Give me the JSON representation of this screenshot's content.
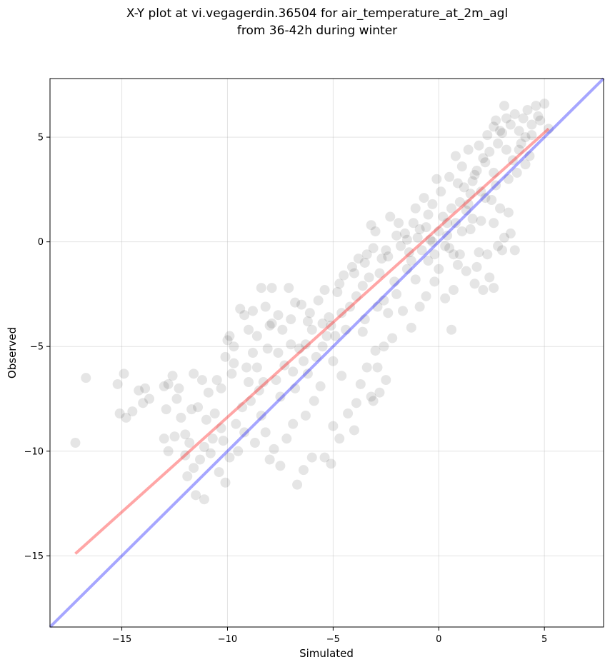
{
  "chart_data": {
    "type": "scatter",
    "title": "X-Y plot at vi.vegagerdin.36504 for air_temperature_at_2m_agl",
    "subtitle": "from 36-42h during winter",
    "xlabel": "Simulated",
    "ylabel": "Observed",
    "xlim": [
      -18.4,
      7.8
    ],
    "ylim": [
      -18.4,
      7.8
    ],
    "xticks": [
      -15,
      -10,
      -5,
      0,
      5
    ],
    "yticks": [
      -15,
      -10,
      -5,
      0,
      5
    ],
    "xtick_labels": [
      "−15",
      "−10",
      "−5",
      "0",
      "5"
    ],
    "ytick_labels": [
      "−15",
      "−10",
      "−5",
      "0",
      "5"
    ],
    "grid": true,
    "point_color": "#000000",
    "point_alpha": 0.1,
    "series": [
      {
        "points": [
          [
            -17.2,
            -9.6
          ],
          [
            -16.7,
            -6.5
          ],
          [
            -15.2,
            -6.8
          ],
          [
            -14.9,
            -6.3
          ],
          [
            -15.1,
            -8.2
          ],
          [
            -14.8,
            -8.4
          ],
          [
            -14.5,
            -8.1
          ],
          [
            -14.2,
            -7.1
          ],
          [
            -14.0,
            -7.7
          ],
          [
            -13.7,
            -7.5
          ],
          [
            -13.9,
            -7.0
          ],
          [
            -13.0,
            -6.9
          ],
          [
            -12.8,
            -6.8
          ],
          [
            -12.6,
            -6.4
          ],
          [
            -12.9,
            -8.0
          ],
          [
            -12.4,
            -7.5
          ],
          [
            -12.2,
            -8.4
          ],
          [
            -12.5,
            -9.3
          ],
          [
            -12.0,
            -9.2
          ],
          [
            -13.0,
            -9.4
          ],
          [
            -12.8,
            -10.0
          ],
          [
            -12.0,
            -10.2
          ],
          [
            -11.8,
            -9.6
          ],
          [
            -11.6,
            -10.8
          ],
          [
            -11.3,
            -10.4
          ],
          [
            -11.9,
            -11.2
          ],
          [
            -11.5,
            -12.1
          ],
          [
            -11.1,
            -12.3
          ],
          [
            -11.6,
            -6.3
          ],
          [
            -11.2,
            -6.6
          ],
          [
            -10.9,
            -7.2
          ],
          [
            -11.4,
            -7.9
          ],
          [
            -11.0,
            -8.5
          ],
          [
            -10.5,
            -6.6
          ],
          [
            -10.3,
            -7.0
          ],
          [
            -10.6,
            -8.2
          ],
          [
            -10.2,
            -9.5
          ],
          [
            -10.8,
            -10.1
          ],
          [
            -10.4,
            -11.0
          ],
          [
            -10.1,
            -11.5
          ],
          [
            -9.9,
            -10.3
          ],
          [
            -9.5,
            -10.0
          ],
          [
            -10.0,
            -4.7
          ],
          [
            -9.7,
            -5.0
          ],
          [
            -10.1,
            -5.5
          ],
          [
            -9.8,
            -6.3
          ],
          [
            -9.4,
            -3.2
          ],
          [
            -9.2,
            -3.5
          ],
          [
            -9.0,
            -4.2
          ],
          [
            -8.6,
            -4.5
          ],
          [
            -8.8,
            -5.3
          ],
          [
            -9.1,
            -6.0
          ],
          [
            -8.5,
            -7.1
          ],
          [
            -8.9,
            -7.6
          ],
          [
            -8.4,
            -8.3
          ],
          [
            -8.2,
            -9.1
          ],
          [
            -8.7,
            -9.6
          ],
          [
            -8.0,
            -10.4
          ],
          [
            -7.8,
            -9.9
          ],
          [
            -7.5,
            -10.7
          ],
          [
            -7.2,
            -9.4
          ],
          [
            -6.9,
            -8.7
          ],
          [
            -6.7,
            -11.6
          ],
          [
            -6.4,
            -10.9
          ],
          [
            -6.0,
            -10.3
          ],
          [
            -5.4,
            -10.3
          ],
          [
            -5.1,
            -10.6
          ],
          [
            -8.4,
            -2.2
          ],
          [
            -7.9,
            -2.2
          ],
          [
            -7.1,
            -2.2
          ],
          [
            -8.2,
            -3.1
          ],
          [
            -7.6,
            -3.5
          ],
          [
            -7.0,
            -3.7
          ],
          [
            -6.5,
            -3.0
          ],
          [
            -6.1,
            -3.4
          ],
          [
            -5.7,
            -2.8
          ],
          [
            -5.2,
            -3.6
          ],
          [
            -4.8,
            -2.4
          ],
          [
            -4.5,
            -1.6
          ],
          [
            -4.1,
            -1.2
          ],
          [
            -3.8,
            -0.8
          ],
          [
            -3.4,
            -0.6
          ],
          [
            -3.2,
            0.8
          ],
          [
            -3.0,
            0.5
          ],
          [
            -2.8,
            -1.5
          ],
          [
            -2.4,
            -0.7
          ],
          [
            -2.1,
            -1.9
          ],
          [
            -2.6,
            -2.8
          ],
          [
            -3.6,
            -4.3
          ],
          [
            -3.0,
            -5.2
          ],
          [
            -3.4,
            -6.0
          ],
          [
            -3.7,
            -6.8
          ],
          [
            -3.2,
            -7.4
          ],
          [
            -3.9,
            -7.7
          ],
          [
            -4.3,
            -8.2
          ],
          [
            -4.0,
            -9.0
          ],
          [
            -4.6,
            -6.4
          ],
          [
            -5.0,
            -5.7
          ],
          [
            -5.3,
            -4.5
          ],
          [
            -5.8,
            -5.5
          ],
          [
            -6.2,
            -6.3
          ],
          [
            -6.6,
            -5.1
          ],
          [
            -6.8,
            -7.0
          ],
          [
            -7.3,
            -5.9
          ],
          [
            -7.7,
            -6.6
          ],
          [
            -8.1,
            -5.1
          ],
          [
            -7.4,
            -4.2
          ],
          [
            -6.3,
            -4.9
          ],
          [
            -5.5,
            -3.9
          ],
          [
            -4.9,
            -4.5
          ],
          [
            -4.2,
            -3.1
          ],
          [
            -3.6,
            -2.1
          ],
          [
            -2.9,
            -3.1
          ],
          [
            -2.4,
            -3.4
          ],
          [
            -2.2,
            -4.6
          ],
          [
            -2.6,
            -5.0
          ],
          [
            -2.9,
            -6.0
          ],
          [
            -2.5,
            -6.6
          ],
          [
            -2.8,
            -7.2
          ],
          [
            -3.1,
            -7.6
          ],
          [
            -3.5,
            -3.7
          ],
          [
            -4.4,
            -4.2
          ],
          [
            -5.6,
            -6.9
          ],
          [
            -5.9,
            -7.6
          ],
          [
            -6.3,
            -8.3
          ],
          [
            -5.0,
            -8.8
          ],
          [
            -4.7,
            -9.4
          ],
          [
            -6.9,
            -6.2
          ],
          [
            -7.5,
            -7.4
          ],
          [
            -8.3,
            -6.7
          ],
          [
            -9.3,
            -7.9
          ],
          [
            -9.6,
            -8.7
          ],
          [
            -9.2,
            -9.1
          ],
          [
            -1.8,
            -0.2
          ],
          [
            -1.6,
            0.4
          ],
          [
            -1.4,
            -0.5
          ],
          [
            -1.2,
            0.9
          ],
          [
            -1.0,
            0.2
          ],
          [
            -0.8,
            -0.4
          ],
          [
            -0.6,
            0.7
          ],
          [
            -0.4,
            0.1
          ],
          [
            -0.2,
            -0.6
          ],
          [
            0.0,
            0.5
          ],
          [
            0.2,
            1.2
          ],
          [
            0.4,
            0.3
          ],
          [
            0.6,
            1.6
          ],
          [
            0.8,
            0.9
          ],
          [
            1.0,
            1.9
          ],
          [
            1.2,
            2.6
          ],
          [
            1.4,
            1.8
          ],
          [
            1.6,
            2.9
          ],
          [
            1.8,
            3.4
          ],
          [
            2.0,
            2.4
          ],
          [
            2.2,
            3.8
          ],
          [
            2.4,
            4.3
          ],
          [
            2.6,
            3.3
          ],
          [
            2.8,
            4.7
          ],
          [
            3.0,
            5.2
          ],
          [
            3.2,
            4.4
          ],
          [
            3.4,
            5.6
          ],
          [
            3.6,
            6.1
          ],
          [
            3.8,
            5.3
          ],
          [
            4.0,
            5.9
          ],
          [
            4.2,
            6.3
          ],
          [
            4.4,
            5.1
          ],
          [
            4.6,
            6.5
          ],
          [
            4.8,
            5.8
          ],
          [
            5.0,
            6.6
          ],
          [
            5.2,
            5.4
          ],
          [
            3.1,
            6.5
          ],
          [
            2.7,
            5.8
          ],
          [
            3.9,
            4.7
          ],
          [
            4.3,
            4.1
          ],
          [
            4.1,
            3.7
          ],
          [
            3.7,
            3.3
          ],
          [
            3.3,
            1.4
          ],
          [
            3.1,
            0.2
          ],
          [
            3.4,
            0.4
          ],
          [
            2.6,
            0.9
          ],
          [
            2.2,
            2.1
          ],
          [
            2.9,
            1.6
          ],
          [
            1.5,
            0.6
          ],
          [
            1.9,
            -0.5
          ],
          [
            2.3,
            -0.6
          ],
          [
            2.8,
            -0.2
          ],
          [
            1.8,
            -1.2
          ],
          [
            2.4,
            -1.7
          ],
          [
            1.7,
            -2.0
          ],
          [
            2.6,
            -2.2
          ],
          [
            2.1,
            -2.3
          ],
          [
            3.0,
            -0.4
          ],
          [
            3.6,
            -0.4
          ],
          [
            1.3,
            -1.4
          ],
          [
            0.9,
            -1.1
          ],
          [
            0.7,
            -2.3
          ],
          [
            0.6,
            -4.2
          ],
          [
            0.3,
            -2.7
          ],
          [
            -0.2,
            -1.9
          ],
          [
            -0.6,
            -2.6
          ],
          [
            -1.1,
            -1.8
          ],
          [
            -1.3,
            -4.1
          ],
          [
            -0.9,
            -3.1
          ],
          [
            -1.5,
            -1.3
          ],
          [
            -2.0,
            -2.5
          ],
          [
            -1.7,
            -3.3
          ],
          [
            -1.9,
            0.9
          ],
          [
            -2.3,
            1.2
          ],
          [
            -1.1,
            1.6
          ],
          [
            -0.7,
            2.1
          ],
          [
            -0.3,
            1.8
          ],
          [
            0.1,
            2.4
          ],
          [
            0.5,
            3.1
          ],
          [
            -0.1,
            3.0
          ],
          [
            0.9,
            2.8
          ],
          [
            1.1,
            3.6
          ],
          [
            0.8,
            4.1
          ],
          [
            1.4,
            4.4
          ],
          [
            1.9,
            4.6
          ],
          [
            2.3,
            5.1
          ],
          [
            2.6,
            5.5
          ],
          [
            -0.5,
            1.3
          ],
          [
            0.3,
            -0.2
          ],
          [
            -0.9,
            0.6
          ],
          [
            1.6,
            1.1
          ],
          [
            0.4,
            0.9
          ],
          [
            -0.3,
            0.0
          ],
          [
            1.1,
            0.5
          ],
          [
            2.0,
            1.0
          ],
          [
            2.5,
            2.0
          ],
          [
            1.3,
            1.5
          ],
          [
            0.7,
            -0.6
          ],
          [
            -1.5,
            0.1
          ],
          [
            -2.5,
            -0.4
          ],
          [
            -2.0,
            0.3
          ],
          [
            -3.3,
            -1.7
          ],
          [
            -3.9,
            -2.6
          ],
          [
            -4.6,
            -3.4
          ],
          [
            -5.1,
            -4.0
          ],
          [
            -5.5,
            -5.0
          ],
          [
            -6.0,
            -4.2
          ],
          [
            -6.4,
            -5.7
          ],
          [
            -7.0,
            -4.9
          ],
          [
            -7.6,
            -5.3
          ],
          [
            -8.0,
            -4.0
          ],
          [
            -8.6,
            -6.0
          ],
          [
            -9.0,
            -6.7
          ],
          [
            -9.7,
            -5.8
          ],
          [
            -10.3,
            -8.9
          ],
          [
            -10.7,
            -9.4
          ],
          [
            -11.1,
            -9.8
          ],
          [
            -11.7,
            -8.0
          ],
          [
            -12.3,
            -7.0
          ],
          [
            -9.9,
            -4.5
          ],
          [
            -8.8,
            -3.3
          ],
          [
            -7.9,
            -3.9
          ],
          [
            -6.8,
            -2.9
          ],
          [
            -6.2,
            -3.8
          ],
          [
            -5.4,
            -2.3
          ],
          [
            -4.7,
            -2.0
          ],
          [
            -4.0,
            -1.5
          ],
          [
            -3.5,
            -1.0
          ],
          [
            -3.1,
            -0.3
          ],
          [
            -2.7,
            -0.8
          ],
          [
            -1.3,
            -0.9
          ],
          [
            -0.5,
            -0.9
          ],
          [
            0.0,
            -1.3
          ],
          [
            0.5,
            -0.3
          ],
          [
            1.0,
            -0.6
          ],
          [
            1.5,
            2.3
          ],
          [
            2.7,
            2.7
          ],
          [
            3.3,
            3.0
          ],
          [
            3.5,
            3.9
          ],
          [
            3.8,
            4.4
          ],
          [
            4.1,
            5.0
          ],
          [
            4.4,
            5.6
          ],
          [
            4.7,
            6.0
          ],
          [
            3.2,
            5.9
          ],
          [
            2.9,
            5.3
          ],
          [
            2.1,
            4.0
          ],
          [
            1.7,
            3.2
          ]
        ]
      }
    ],
    "lines": [
      {
        "color": "#ff0000",
        "alpha": 0.35,
        "points": [
          [
            -17.2,
            -14.9
          ],
          [
            5.2,
            5.4
          ]
        ]
      },
      {
        "color": "#0000ff",
        "alpha": 0.35,
        "points": [
          [
            -18.4,
            -18.4
          ],
          [
            7.8,
            7.8
          ]
        ]
      }
    ]
  }
}
